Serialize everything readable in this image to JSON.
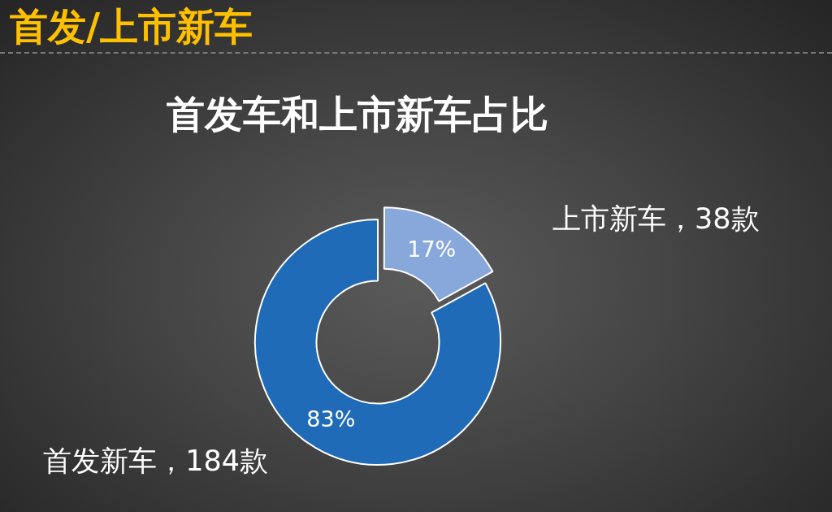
{
  "chart_data": {
    "type": "donut",
    "title": "首发/上市新车",
    "subtitle": "首发车和上市新车占比",
    "categories": [
      "上市新车，38款",
      "首发新车，184款"
    ],
    "values": [
      17,
      83
    ],
    "colors": [
      "#88a8dc",
      "#1f6bb8"
    ],
    "value_labels": [
      "17%",
      "83%"
    ]
  }
}
